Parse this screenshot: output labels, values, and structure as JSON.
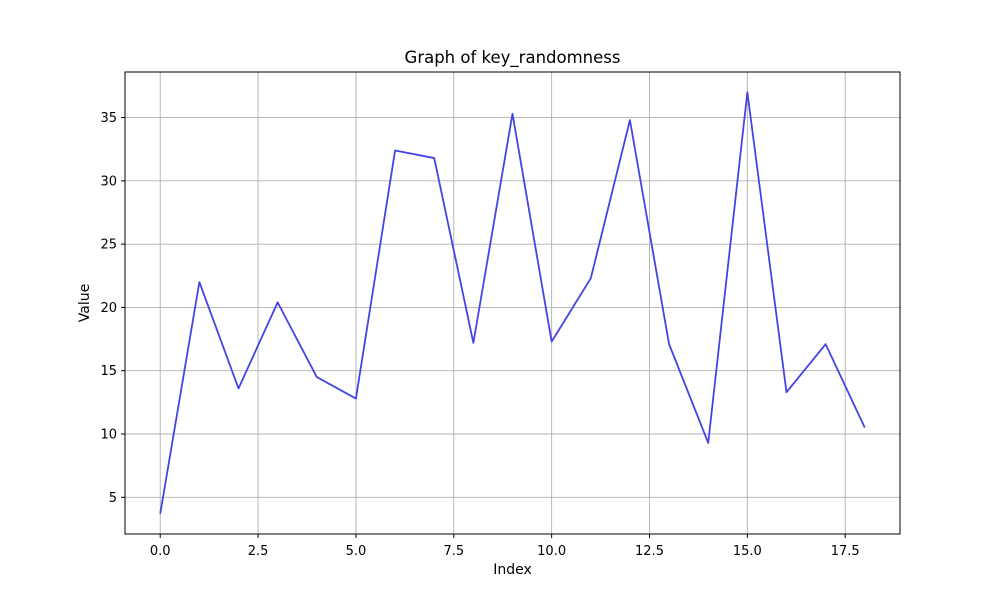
{
  "chart_data": {
    "type": "line",
    "title": "Graph of key_randomness",
    "xlabel": "Index",
    "ylabel": "Value",
    "xlim": [
      -0.9,
      18.9
    ],
    "ylim": [
      2.1,
      38.6
    ],
    "grid": true,
    "x_ticks": [
      0.0,
      2.5,
      5.0,
      7.5,
      10.0,
      12.5,
      15.0,
      17.5
    ],
    "x_tick_labels": [
      "0.0",
      "2.5",
      "5.0",
      "7.5",
      "10.0",
      "12.5",
      "15.0",
      "17.5"
    ],
    "y_ticks": [
      5,
      10,
      15,
      20,
      25,
      30,
      35
    ],
    "y_tick_labels": [
      "5",
      "10",
      "15",
      "20",
      "25",
      "30",
      "35"
    ],
    "series": [
      {
        "color": "#4444e6",
        "x": [
          0,
          1,
          2,
          3,
          4,
          5,
          6,
          7,
          8,
          9,
          10,
          11,
          12,
          13,
          14,
          15,
          16,
          17,
          18
        ],
        "y": [
          3.7,
          22.0,
          13.6,
          20.4,
          14.5,
          12.8,
          32.4,
          31.8,
          17.2,
          35.3,
          17.3,
          22.3,
          34.8,
          17.1,
          9.3,
          37.0,
          13.3,
          17.1,
          10.5
        ]
      }
    ]
  }
}
